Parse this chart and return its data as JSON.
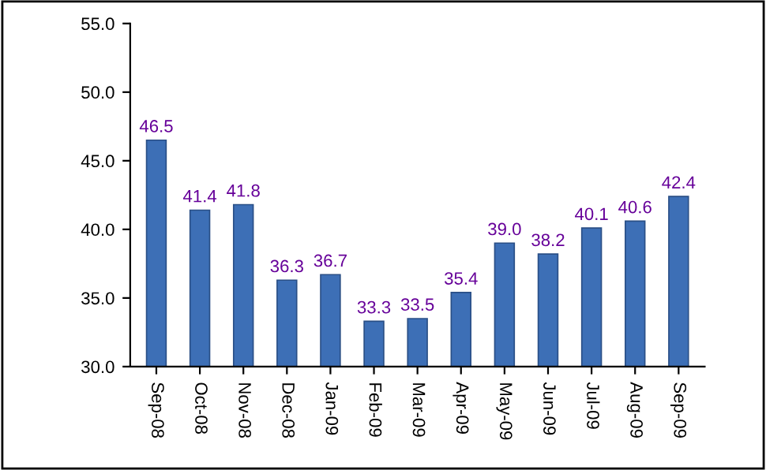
{
  "chart_data": {
    "type": "bar",
    "categories": [
      "Sep-08",
      "Oct-08",
      "Nov-08",
      "Dec-08",
      "Jan-09",
      "Feb-09",
      "Mar-09",
      "Apr-09",
      "May-09",
      "Jun-09",
      "Jul-09",
      "Aug-09",
      "Sep-09"
    ],
    "values": [
      46.5,
      41.4,
      41.8,
      36.3,
      36.7,
      33.3,
      33.5,
      35.4,
      39.0,
      38.2,
      40.1,
      40.6,
      42.4
    ],
    "value_labels": [
      "46.5",
      "41.4",
      "41.8",
      "36.3",
      "36.7",
      "33.3",
      "33.5",
      "35.4",
      "39.0",
      "38.2",
      "40.1",
      "40.6",
      "42.4"
    ],
    "color": "#3d6fb6",
    "ylim": [
      30,
      55
    ],
    "yticks": [
      {
        "value": 30,
        "label": "30.0"
      },
      {
        "value": 35,
        "label": "35.0"
      },
      {
        "value": 40,
        "label": "40.0"
      },
      {
        "value": 45,
        "label": "45.0"
      },
      {
        "value": 50,
        "label": "50.0"
      },
      {
        "value": 55,
        "label": "55.0"
      }
    ],
    "grid": false,
    "legend": false
  }
}
